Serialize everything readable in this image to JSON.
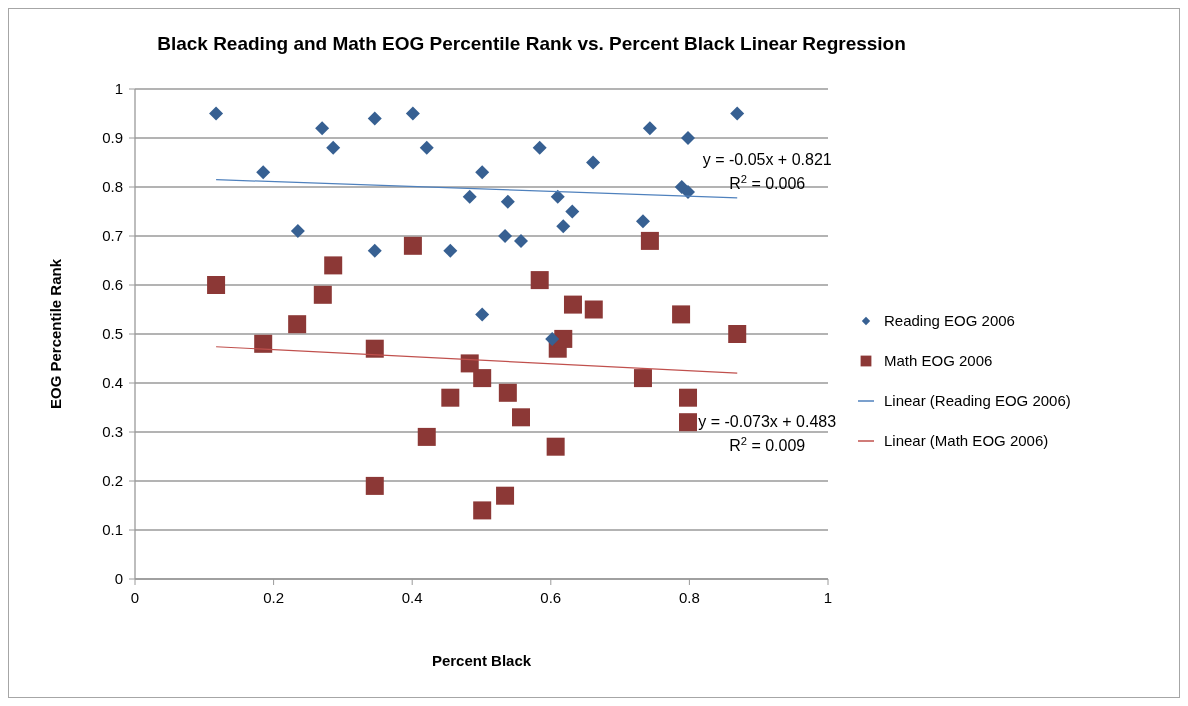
{
  "chart_data": {
    "type": "scatter",
    "title": "Black Reading and Math EOG Percentile Rank vs. Percent Black Linear Regression",
    "xlabel": "Percent Black",
    "ylabel": "EOG Percentile Rank",
    "xlim": [
      0,
      1
    ],
    "xticks": [
      0,
      0.2,
      0.4,
      0.6,
      0.8,
      1
    ],
    "ylim": [
      0,
      1
    ],
    "yticks": [
      0,
      0.1,
      0.2,
      0.3,
      0.4,
      0.5,
      0.6,
      0.7,
      0.8,
      0.9,
      1
    ],
    "grid": "y",
    "legend": "right",
    "series": [
      {
        "name": "Reading EOG 2006",
        "marker": "diamond",
        "color": "#376092",
        "x": [
          0.117,
          0.185,
          0.235,
          0.27,
          0.286,
          0.346,
          0.346,
          0.401,
          0.421,
          0.455,
          0.483,
          0.501,
          0.501,
          0.534,
          0.538,
          0.557,
          0.584,
          0.602,
          0.61,
          0.618,
          0.631,
          0.661,
          0.733,
          0.743,
          0.789,
          0.798,
          0.798,
          0.869
        ],
        "values": [
          0.95,
          0.83,
          0.71,
          0.92,
          0.88,
          0.94,
          0.67,
          0.95,
          0.88,
          0.67,
          0.78,
          0.83,
          0.54,
          0.7,
          0.77,
          0.69,
          0.88,
          0.49,
          0.78,
          0.72,
          0.75,
          0.85,
          0.73,
          0.92,
          0.8,
          0.79,
          0.9,
          0.95
        ]
      },
      {
        "name": "Math EOG 2006",
        "marker": "square",
        "color": "#8c3836",
        "x": [
          0.117,
          0.185,
          0.234,
          0.271,
          0.286,
          0.346,
          0.346,
          0.401,
          0.421,
          0.455,
          0.483,
          0.501,
          0.501,
          0.534,
          0.538,
          0.557,
          0.584,
          0.607,
          0.61,
          0.618,
          0.632,
          0.662,
          0.733,
          0.743,
          0.788,
          0.798,
          0.798,
          0.869
        ],
        "values": [
          0.6,
          0.48,
          0.52,
          0.58,
          0.64,
          0.47,
          0.19,
          0.68,
          0.29,
          0.37,
          0.44,
          0.41,
          0.14,
          0.17,
          0.38,
          0.33,
          0.61,
          0.27,
          0.47,
          0.49,
          0.56,
          0.55,
          0.41,
          0.69,
          0.54,
          0.37,
          0.32,
          0.5
        ]
      },
      {
        "name": "Linear (Reading EOG 2006)",
        "type": "line",
        "marker": "none",
        "color": "#4f81bd",
        "x": [
          0.117,
          0.869
        ],
        "values": [
          0.815,
          0.778
        ]
      },
      {
        "name": "Linear (Math EOG 2006)",
        "type": "line",
        "marker": "none",
        "color": "#c0504d",
        "x": [
          0.117,
          0.869
        ],
        "values": [
          0.474,
          0.42
        ]
      }
    ],
    "annotations": [
      "y = -0.05x + 0.821\nR$^{2}$ = 0.006",
      "y = -0.073x + 0.483\nR$^{2}$ = 0.009"
    ]
  }
}
